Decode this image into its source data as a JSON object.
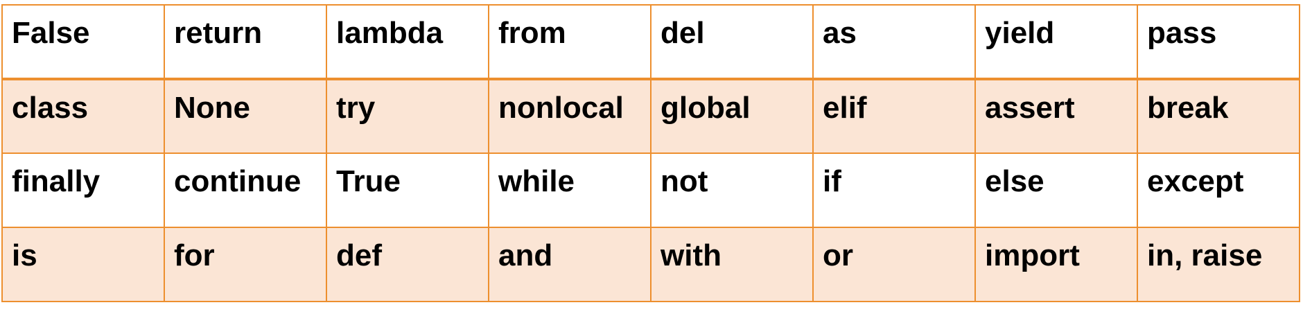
{
  "colors": {
    "border": "#ED8F2E",
    "band_fill": "#FBE5D5",
    "plain_fill": "#FFFFFF",
    "text": "#000000"
  },
  "table": {
    "rows": [
      [
        "False",
        "return",
        "lambda",
        "from",
        "del",
        "as",
        "yield",
        "pass"
      ],
      [
        "class",
        "None",
        "try",
        "nonlocal",
        "global",
        "elif",
        "assert",
        "break"
      ],
      [
        "finally",
        "continue",
        "True",
        "while",
        "not",
        "if",
        "else",
        "except"
      ],
      [
        "is",
        "for",
        "def",
        "and",
        "with",
        "or",
        "import",
        "in, raise"
      ]
    ]
  }
}
